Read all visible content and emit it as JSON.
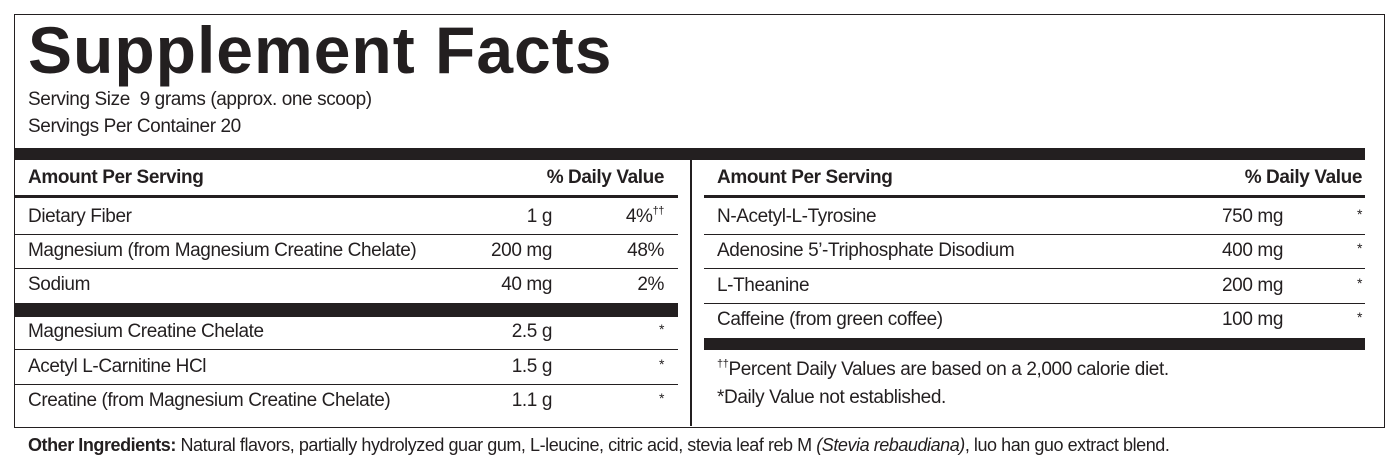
{
  "header": {
    "title": "Supplement Facts",
    "serving_size": "Serving Size  9 grams (approx. one scoop)",
    "servings_per_container": "Servings Per Container 20"
  },
  "left_table": {
    "headers": [
      "Amount Per Serving",
      "% Daily Value"
    ],
    "rows": [
      [
        "Dietary Fiber",
        "1 g",
        "4%",
        "††"
      ],
      [
        "Magnesium (from Magnesium Creatine Chelate)",
        "200 mg",
        "48%"
      ],
      [
        "Sodium",
        "40 mg",
        "2%"
      ]
    ],
    "rows_2": [
      [
        "Magnesium Creatine Chelate",
        "2.5 g",
        "*"
      ],
      [
        "Acetyl L-Carnitine HCl",
        "1.5 g",
        "*"
      ],
      [
        "Creatine (from Magnesium Creatine Chelate)",
        "1.1 g",
        "*"
      ]
    ]
  },
  "right_table": {
    "headers": [
      "Amount Per Serving",
      "% Daily Value"
    ],
    "rows": [
      [
        "N-Acetyl-L-Tyrosine",
        "750 mg",
        "*"
      ],
      [
        "Adenosine 5’-Triphosphate Disodium",
        "400 mg",
        "*"
      ],
      [
        "L-Theanine",
        "200 mg",
        "*"
      ],
      [
        "Caffeine (from green coffee)",
        "100 mg",
        "*"
      ]
    ]
  },
  "footnotes": [
    {
      "mark": "††",
      "text": "Percent Daily Values are based on a 2,000 calorie diet."
    },
    {
      "text": "*Daily Value not established."
    }
  ],
  "other_ingredients": {
    "label": "Other Ingredients:",
    "text": " Natural flavors, partially hydrolyzed guar gum, L-leucine, citric acid, stevia leaf reb M ",
    "italic": "(Stevia rebaudiana)",
    "text_after": ", luo han guo extract blend."
  }
}
